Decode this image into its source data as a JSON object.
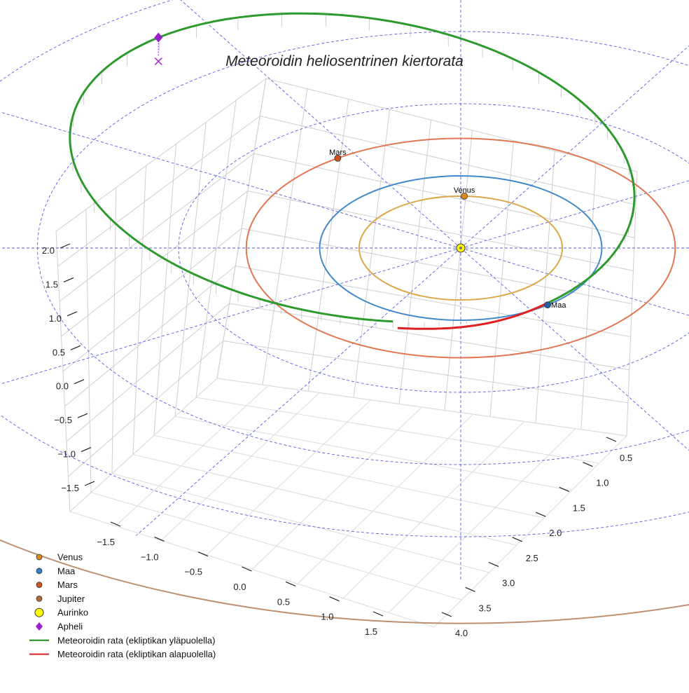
{
  "chart_data": {
    "type": "scatter",
    "title": "Meteoroidin heliosentrinen kiertorata",
    "axes": {
      "x_ticks": [
        "−1.5",
        "−1.0",
        "−0.5",
        "0.0",
        "0.5",
        "1.0",
        "1.5"
      ],
      "y_ticks": [
        "0.5",
        "1.0",
        "1.5",
        "2.0",
        "2.5",
        "3.0",
        "3.5",
        "4.0"
      ],
      "z_ticks": [
        "−1.5",
        "−1.0",
        "−0.5",
        "0.0",
        "0.5",
        "1.0",
        "1.5",
        "2.0"
      ],
      "grid": true
    },
    "reference_rings_au": [
      1,
      2,
      3,
      4
    ],
    "orbits_au": [
      {
        "name": "Venus",
        "radius": 0.72,
        "color": "#d9a441"
      },
      {
        "name": "Maa",
        "radius": 1.0,
        "color": "#3a86c8"
      },
      {
        "name": "Mars",
        "radius": 1.52,
        "color": "#e0704a"
      },
      {
        "name": "Jupiter",
        "radius": 5.2,
        "color": "#b98a6a"
      }
    ],
    "bodies": [
      {
        "name": "Venus",
        "label": "Venus",
        "color": "#d98a1a",
        "angle_deg": 88
      },
      {
        "name": "Maa",
        "label": "Maa",
        "color": "#1f5fa8",
        "angle_deg": -52
      },
      {
        "name": "Mars",
        "label": "Mars",
        "color": "#d0531f",
        "angle_deg": 125
      }
    ],
    "meteoroid": {
      "perihelion_au": 0.98,
      "aphelion_au": 3.48,
      "label_above": "Meteoroidin rata (ekliptikan yläpuolella)",
      "label_below": "Meteoroidin rata (ekliptikan alapuolella)",
      "color_above": "#2e9a2e",
      "color_below": "#e02020"
    },
    "legend": {
      "placement": "bottom-left",
      "entries": [
        {
          "label": "Venus",
          "marker": "dot",
          "color": "#d98a1a"
        },
        {
          "label": "Maa",
          "marker": "dot",
          "color": "#2f7fc1"
        },
        {
          "label": "Mars",
          "marker": "dot",
          "color": "#d0531f"
        },
        {
          "label": "Jupiter",
          "marker": "dot",
          "color": "#b0683a"
        },
        {
          "label": "Aurinko",
          "marker": "sun",
          "color": "#ffff00"
        },
        {
          "label": "Apheli",
          "marker": "diamond",
          "color": "#9b1fd1"
        },
        {
          "label": "Meteoroidin rata (ekliptikan yläpuolella)",
          "marker": "line",
          "color": "#1a8a1a"
        },
        {
          "label": "Meteoroidin rata (ekliptikan alapuolella)",
          "marker": "line",
          "color": "#e02020"
        }
      ]
    }
  }
}
